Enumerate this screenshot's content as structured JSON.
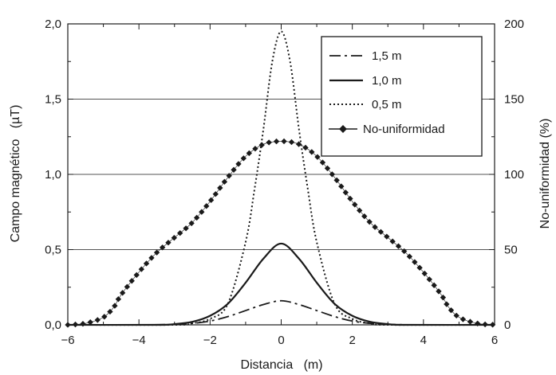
{
  "chart_data": {
    "type": "line",
    "xlabel": "Distancia   (m)",
    "ylabel_left": "Campo magnético   (µT)",
    "ylabel_right": "No-uniformidad (%)",
    "xlim": [
      -6,
      6
    ],
    "ylim_left": [
      0,
      2
    ],
    "ylim_right": [
      0,
      200
    ],
    "x_ticks": [
      "-6",
      "-4",
      "-2",
      "0",
      "2",
      "4",
      "6"
    ],
    "y_ticks_left": [
      "0,0",
      "0,5",
      "1,0",
      "1,5",
      "2,0"
    ],
    "y_ticks_right": [
      "0",
      "50",
      "100",
      "150",
      "200"
    ],
    "grid": "horizontal",
    "legend_position": "top-right",
    "series": [
      {
        "name": "1,5 m",
        "axis": "left",
        "style": "dash-dot",
        "x": [
          -6,
          -4,
          -3,
          -2.5,
          -2,
          -1.5,
          -1,
          -0.5,
          0,
          0.5,
          1,
          1.5,
          2,
          2.5,
          3,
          4,
          6
        ],
        "y": [
          0,
          0,
          0.003,
          0.01,
          0.025,
          0.055,
          0.095,
          0.135,
          0.16,
          0.135,
          0.095,
          0.055,
          0.025,
          0.01,
          0.003,
          0,
          0
        ]
      },
      {
        "name": "1,0 m",
        "axis": "left",
        "style": "solid",
        "x": [
          -6,
          -3.5,
          -3,
          -2.5,
          -2,
          -1.5,
          -1,
          -0.5,
          0,
          0.5,
          1,
          1.5,
          2,
          2.5,
          3,
          3.5,
          6
        ],
        "y": [
          0,
          0,
          0.005,
          0.02,
          0.06,
          0.14,
          0.28,
          0.44,
          0.54,
          0.44,
          0.28,
          0.14,
          0.06,
          0.02,
          0.005,
          0,
          0
        ]
      },
      {
        "name": "0,5 m",
        "axis": "left",
        "style": "dotted",
        "x": [
          -6,
          -3,
          -2.5,
          -2,
          -1.5,
          -1,
          -0.75,
          -0.5,
          -0.25,
          0,
          0.25,
          0.5,
          0.75,
          1,
          1.5,
          2,
          2.5,
          3,
          6
        ],
        "y": [
          0,
          0,
          0.01,
          0.04,
          0.14,
          0.55,
          0.9,
          1.3,
          1.75,
          1.95,
          1.75,
          1.3,
          0.9,
          0.55,
          0.14,
          0.04,
          0.01,
          0,
          0
        ]
      },
      {
        "name": "No-uniformidad",
        "axis": "right",
        "style": "diamond-markers",
        "x": [
          -6,
          -5.5,
          -5,
          -4.7,
          -4.5,
          -4,
          -3.5,
          -3,
          -2.5,
          -2,
          -1.5,
          -1,
          -0.5,
          0,
          0.5,
          1,
          1.5,
          2,
          2.5,
          3,
          3.5,
          4,
          4.5,
          4.7,
          5,
          5.5,
          6
        ],
        "y": [
          0,
          1,
          5,
          12,
          20,
          35,
          48,
          58,
          68,
          82,
          98,
          112,
          120,
          122,
          120,
          112,
          98,
          82,
          68,
          58,
          48,
          35,
          20,
          12,
          5,
          1,
          0
        ]
      }
    ]
  }
}
